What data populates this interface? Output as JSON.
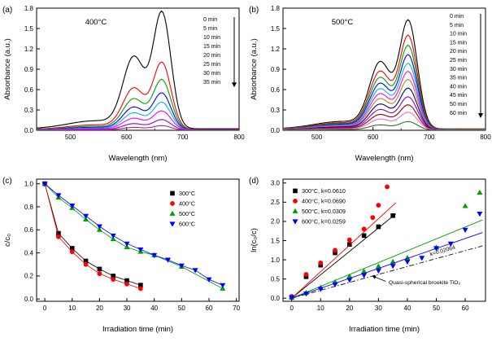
{
  "figure": {
    "background": "#ffffff"
  },
  "chart_data": [
    {
      "id": "a",
      "type": "spectra",
      "tag": "(a)",
      "title": "400°C",
      "xlabel": "Wavelength (nm)",
      "ylabel": "Absorbance (a.u.)",
      "xlim": [
        440,
        800
      ],
      "ylim": [
        0,
        1.8
      ],
      "xticks": [
        500,
        600,
        700,
        800
      ],
      "xtick_labels": [
        "500",
        "600",
        "700",
        "800"
      ],
      "xminor": [
        450,
        550,
        650,
        750
      ],
      "yticks": [
        0,
        0.3,
        0.6,
        0.9,
        1.2,
        1.5,
        1.8
      ],
      "ytick_labels": [
        "0.0",
        "0.3",
        "0.6",
        "0.9",
        "1.2",
        "1.5",
        "1.8"
      ],
      "shape": {
        "main_center": 663,
        "main_width": 22.5,
        "shoulder_center": 613,
        "shoulder_width": 27,
        "shoulder_ratio": 0.6,
        "tail_center": 545,
        "tail_width": 70,
        "tail_ratio": 0.07,
        "baseline": 0.012,
        "norm": 1.05
      },
      "series": [
        {
          "label": "0 min",
          "color": "#000000",
          "peak": 1.78
        },
        {
          "label": "5 min",
          "color": "#ff0000",
          "peak": 1.02
        },
        {
          "label": "10 min",
          "color": "#00a000",
          "peak": 0.76
        },
        {
          "label": "15 min",
          "color": "#0000ff",
          "peak": 0.56
        },
        {
          "label": "20 min",
          "color": "#00b7eb",
          "peak": 0.42
        },
        {
          "label": "25 min",
          "color": "#ff00ff",
          "peak": 0.29
        },
        {
          "label": "30 min",
          "color": "#9400d3",
          "peak": 0.16
        },
        {
          "label": "35 min",
          "color": "#b22288",
          "peak": 0.07
        }
      ],
      "legend": {
        "style": "time-list",
        "arrow": true
      }
    },
    {
      "id": "b",
      "type": "spectra",
      "tag": "(b)",
      "title": "500°C",
      "xlabel": "Wavelength (nm)",
      "ylabel": "Absorbance (a.u.)",
      "xlim": [
        440,
        800
      ],
      "ylim": [
        0,
        1.8
      ],
      "xticks": [
        500,
        600,
        700,
        800
      ],
      "xtick_labels": [
        "500",
        "600",
        "700",
        "800"
      ],
      "xminor": [
        450,
        550,
        650,
        750
      ],
      "yticks": [
        0,
        0.3,
        0.6,
        0.9,
        1.2,
        1.5,
        1.8
      ],
      "ytick_labels": [
        "0.0",
        "0.3",
        "0.6",
        "0.9",
        "1.2",
        "1.5",
        "1.8"
      ],
      "shape": {
        "main_center": 663,
        "main_width": 22.5,
        "shoulder_center": 613,
        "shoulder_width": 27,
        "shoulder_ratio": 0.6,
        "tail_center": 545,
        "tail_width": 70,
        "tail_ratio": 0.07,
        "baseline": 0.012,
        "norm": 1.05
      },
      "series": [
        {
          "label": "0 min",
          "color": "#000000",
          "peak": 1.65
        },
        {
          "label": "5 min",
          "color": "#ff0000",
          "peak": 1.42
        },
        {
          "label": "10 min",
          "color": "#00a000",
          "peak": 1.27
        },
        {
          "label": "15 min",
          "color": "#0000ff",
          "peak": 1.13
        },
        {
          "label": "20 min",
          "color": "#00b7eb",
          "peak": 1.0
        },
        {
          "label": "25 min",
          "color": "#ff00ff",
          "peak": 0.88
        },
        {
          "label": "30 min",
          "color": "#b8860b",
          "peak": 0.76
        },
        {
          "label": "35 min",
          "color": "#000080",
          "peak": 0.63
        },
        {
          "label": "40 min",
          "color": "#9400d3",
          "peak": 0.5
        },
        {
          "label": "45 min",
          "color": "#8b0000",
          "peak": 0.38
        },
        {
          "label": "50 min",
          "color": "#ff69b4",
          "peak": 0.27
        },
        {
          "label": "60 min",
          "color": "#2f6f2f",
          "peak": 0.13
        }
      ],
      "legend": {
        "style": "time-list",
        "arrow": true
      }
    },
    {
      "id": "c",
      "type": "kinetics",
      "tag": "(c)",
      "xlabel": "Irradiation time (min)",
      "ylabel": "c/c₀",
      "xlim": [
        -3,
        71
      ],
      "ylim": [
        -0.02,
        1.04
      ],
      "xticks": [
        0,
        10,
        20,
        30,
        40,
        50,
        60,
        70
      ],
      "xtick_labels": [
        "0",
        "10",
        "20",
        "30",
        "40",
        "50",
        "60",
        "70"
      ],
      "yticks": [
        0,
        0.2,
        0.4,
        0.6,
        0.8,
        1.0
      ],
      "ytick_labels": [
        "0.0",
        "0.2",
        "0.4",
        "0.6",
        "0.8",
        "1.0"
      ],
      "series": [
        {
          "label": "300°C",
          "color": "#000000",
          "marker": "square",
          "connect": true,
          "x": [
            0,
            5,
            10,
            15,
            20,
            25,
            30,
            35
          ],
          "y": [
            1.0,
            0.57,
            0.44,
            0.33,
            0.26,
            0.2,
            0.16,
            0.12
          ]
        },
        {
          "label": "400°C",
          "color": "#ff0000",
          "marker": "circle",
          "connect": true,
          "x": [
            0,
            5,
            10,
            15,
            20,
            25,
            30,
            35
          ],
          "y": [
            1.0,
            0.54,
            0.41,
            0.3,
            0.22,
            0.17,
            0.13,
            0.09
          ]
        },
        {
          "label": "500°C",
          "color": "#00a000",
          "marker": "triangle-up",
          "connect": true,
          "x": [
            0,
            5,
            10,
            15,
            20,
            25,
            30,
            35,
            40,
            50,
            65
          ],
          "y": [
            1.0,
            0.88,
            0.79,
            0.69,
            0.6,
            0.52,
            0.45,
            0.41,
            0.38,
            0.28,
            0.09
          ]
        },
        {
          "label": "600°C",
          "color": "#0000ff",
          "marker": "triangle-down",
          "connect": true,
          "x": [
            0,
            5,
            10,
            15,
            20,
            25,
            30,
            35,
            40,
            45,
            50,
            55,
            60,
            65
          ],
          "y": [
            1.0,
            0.9,
            0.81,
            0.72,
            0.63,
            0.55,
            0.48,
            0.43,
            0.38,
            0.34,
            0.29,
            0.25,
            0.17,
            0.12
          ]
        }
      ],
      "legend": {
        "style": "marker-list",
        "position": "top-right"
      }
    },
    {
      "id": "d",
      "type": "kinetics",
      "tag": "(d)",
      "xlabel": "Irradiation time (min)",
      "ylabel": "ln(c₀/c)",
      "xlim": [
        -3,
        67
      ],
      "ylim": [
        -0.08,
        3.1
      ],
      "xticks": [
        0,
        10,
        20,
        30,
        40,
        50,
        60
      ],
      "xtick_labels": [
        "0",
        "10",
        "20",
        "30",
        "40",
        "50",
        "60"
      ],
      "yticks": [
        0,
        0.5,
        1.0,
        1.5,
        2.0,
        2.5,
        3.0
      ],
      "ytick_labels": [
        "0.0",
        "0.5",
        "1.0",
        "1.5",
        "2.0",
        "2.5",
        "3.0"
      ],
      "series": [
        {
          "label": "300°C, k=0.0610",
          "color": "#000000",
          "marker": "square",
          "fit": {
            "k": 0.061,
            "range": [
              0,
              36
            ]
          },
          "x": [
            0,
            5,
            10,
            15,
            20,
            25,
            30,
            35
          ],
          "y": [
            0.02,
            0.56,
            0.86,
            1.18,
            1.4,
            1.63,
            1.86,
            2.15
          ]
        },
        {
          "label": "400°C, k=0.0690",
          "color": "#ff0000",
          "marker": "circle",
          "fit": {
            "k": 0.069,
            "range": [
              0,
              36
            ]
          },
          "x": [
            0,
            5,
            10,
            15,
            20,
            25,
            28,
            30,
            33
          ],
          "y": [
            0.05,
            0.62,
            0.92,
            1.25,
            1.52,
            1.8,
            2.1,
            2.42,
            2.9
          ]
        },
        {
          "label": "500°C, k=0.0309",
          "color": "#00a000",
          "marker": "triangle-up",
          "fit": {
            "k": 0.0309,
            "range": [
              0,
              66
            ]
          },
          "x": [
            0,
            5,
            10,
            15,
            20,
            25,
            30,
            35,
            40,
            50,
            60,
            65
          ],
          "y": [
            0.02,
            0.14,
            0.28,
            0.42,
            0.57,
            0.7,
            0.83,
            0.95,
            1.05,
            1.32,
            2.4,
            2.75
          ]
        },
        {
          "label": "600°C, k=0.0259",
          "color": "#0000ff",
          "marker": "triangle-down",
          "fit": {
            "k": 0.0259,
            "range": [
              0,
              66
            ]
          },
          "x": [
            0,
            5,
            10,
            15,
            20,
            25,
            30,
            35,
            40,
            45,
            50,
            55,
            60,
            65
          ],
          "y": [
            0.02,
            0.12,
            0.24,
            0.36,
            0.48,
            0.6,
            0.72,
            0.84,
            0.95,
            1.05,
            1.3,
            1.42,
            1.78,
            2.2
          ]
        }
      ],
      "reference_line": {
        "label": "k=0.02064",
        "k": 0.02064,
        "range": [
          0,
          66
        ],
        "color": "#222222",
        "dash": "6 2.5 1.5 2.5",
        "label_pos": {
          "x": 48,
          "y": 1.1,
          "rotate": -16
        }
      },
      "annotation": {
        "text": "Quasi-spherical brookite TiO₂",
        "x": 33.5,
        "y": 0.36,
        "arrow_from": {
          "x": 32.5,
          "y": 0.44
        },
        "arrow_to": {
          "x": 28,
          "y": 0.578
        }
      },
      "legend": {
        "style": "marker-list",
        "position": "top-left"
      }
    }
  ]
}
